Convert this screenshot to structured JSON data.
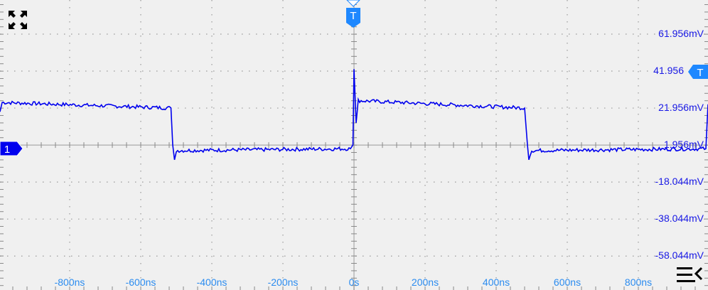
{
  "chart_data": {
    "type": "line",
    "title": "",
    "xlabel": "",
    "ylabel": "",
    "x_unit": "ns",
    "y_unit": "mV",
    "xlim": [
      -996,
      996
    ],
    "ylim": [
      -76.4,
      80.4
    ],
    "grid": true,
    "x_ticks": [
      "-800ns",
      "-600ns",
      "-400ns",
      "-200ns",
      "0s",
      "200ns",
      "400ns",
      "600ns",
      "800ns"
    ],
    "x_tick_values": [
      -800,
      -600,
      -400,
      -200,
      0,
      200,
      400,
      600,
      800
    ],
    "y_ticks": [
      "61.956mV",
      "41.956",
      "21.956mV",
      "1.956mV",
      "-18.044mV",
      "-38.044mV",
      "-58.044mV"
    ],
    "y_tick_values": [
      61.956,
      41.956,
      21.956,
      1.956,
      -18.044,
      -38.044,
      -58.044
    ],
    "series": [
      {
        "color": "#0000ee",
        "description_points": [
          {
            "x": -996,
            "y": 20
          },
          {
            "x": -990,
            "y": 25
          },
          {
            "x": -515,
            "y": 22
          },
          {
            "x": -510,
            "y": 2
          },
          {
            "x": -505,
            "y": -6
          },
          {
            "x": -500,
            "y": -1
          },
          {
            "x": -10,
            "y": 0
          },
          {
            "x": -3,
            "y": 2
          },
          {
            "x": 0,
            "y": 43
          },
          {
            "x": 6,
            "y": 14
          },
          {
            "x": 12,
            "y": 26
          },
          {
            "x": 480,
            "y": 22
          },
          {
            "x": 488,
            "y": 2
          },
          {
            "x": 492,
            "y": -6
          },
          {
            "x": 500,
            "y": -1
          },
          {
            "x": 990,
            "y": 0
          },
          {
            "x": 996,
            "y": 24
          }
        ]
      }
    ]
  },
  "markers": {
    "channel_label": "1",
    "channel_color": "#0000ee",
    "trigger_label": "T",
    "trigger_level_label": "T",
    "trigger_color": "#1e88ff"
  },
  "icons": {
    "top_left": "fullscreen-expand-icon",
    "bottom_right": "menu-collapse-icon"
  }
}
